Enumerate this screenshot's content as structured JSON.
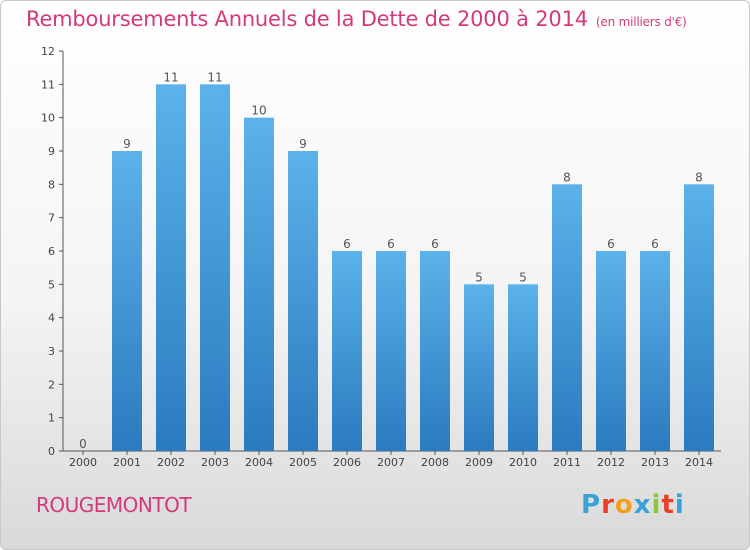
{
  "title": "Remboursements Annuels de la Dette de 2000 à 2014",
  "unit_note": "(en milliers d'€)",
  "commune": "ROUGEMONTOT",
  "logo": {
    "text": "Proxiti",
    "colors": [
      "#3aa0d8",
      "#e8402a",
      "#f0a020",
      "#3aa0d8",
      "#8cc63f",
      "#e8402a",
      "#3aa0d8"
    ]
  },
  "colors": {
    "title": "#d43a7a",
    "bar_top": "#5cb2ea",
    "bar_bottom": "#2a7bbf"
  },
  "chart_data": {
    "type": "bar",
    "categories": [
      "2000",
      "2001",
      "2002",
      "2003",
      "2004",
      "2005",
      "2006",
      "2007",
      "2008",
      "2009",
      "2010",
      "2011",
      "2012",
      "2013",
      "2014"
    ],
    "values": [
      0,
      9,
      11,
      11,
      10,
      9,
      6,
      6,
      6,
      5,
      5,
      8,
      6,
      6,
      8
    ],
    "ylim": [
      0,
      12
    ],
    "yticks": [
      0,
      1,
      2,
      3,
      4,
      5,
      6,
      7,
      8,
      9,
      10,
      11,
      12
    ],
    "grid": false,
    "data_labels": true
  }
}
